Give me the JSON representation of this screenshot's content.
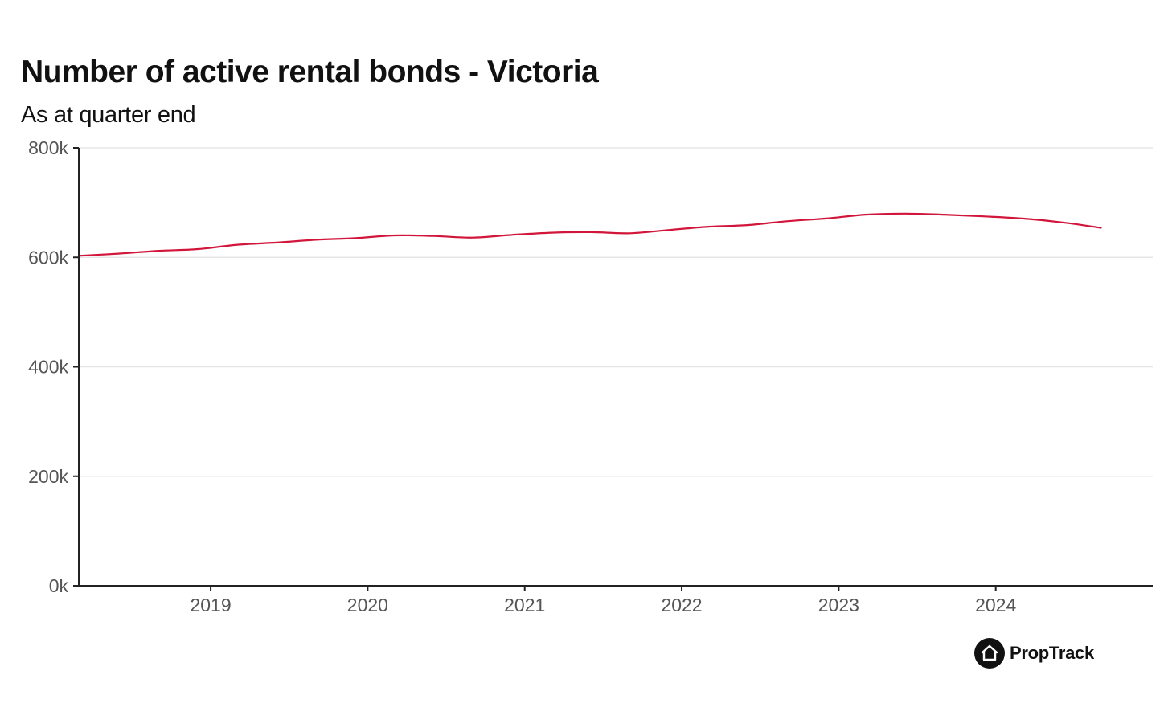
{
  "brand": {
    "name": "PropTrack",
    "logo_icon": "house-icon"
  },
  "chart_data": {
    "type": "line",
    "title": "Number of active rental bonds - Victoria",
    "subtitle": "As at quarter end",
    "xlabel": "",
    "ylabel": "",
    "x_ticks": [
      "2019",
      "2020",
      "2021",
      "2022",
      "2023",
      "2024"
    ],
    "y_ticks": [
      "0k",
      "200k",
      "400k",
      "600k",
      "800k"
    ],
    "xlim": [
      2018.16,
      2025.0
    ],
    "ylim": [
      0,
      800000
    ],
    "grid": true,
    "legend": "none",
    "colors": {
      "line": "#d2153a",
      "grid": "#e6e6e6",
      "axis": "#222222",
      "tick_text": "#555555"
    },
    "series": [
      {
        "x": [
          2018.17,
          2018.42,
          2018.67,
          2018.92,
          2019.17,
          2019.42,
          2019.67,
          2019.92,
          2020.17,
          2020.42,
          2020.67,
          2020.92,
          2021.17,
          2021.42,
          2021.67,
          2021.92,
          2022.17,
          2022.42,
          2022.67,
          2022.92,
          2023.17,
          2023.42,
          2023.67,
          2023.92,
          2024.17,
          2024.42,
          2024.67
        ],
        "values": [
          603000,
          607000,
          612000,
          615000,
          623000,
          627000,
          632000,
          635000,
          640000,
          639000,
          636000,
          641000,
          645000,
          646000,
          644000,
          650000,
          656000,
          659000,
          666000,
          671000,
          678000,
          680000,
          678000,
          675000,
          671000,
          664000,
          654000
        ]
      }
    ]
  }
}
